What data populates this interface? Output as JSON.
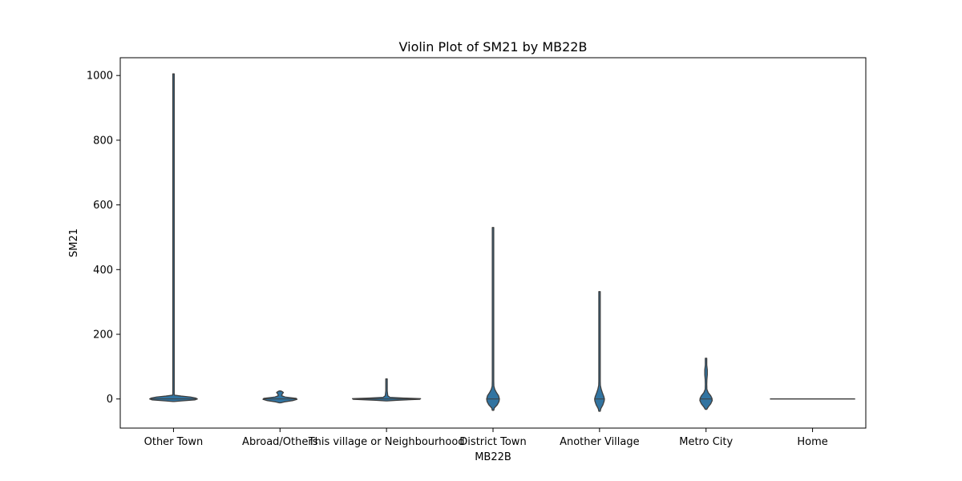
{
  "chart_data": {
    "type": "violin",
    "title": "Violin Plot of SM21 by MB22B",
    "xlabel": "MB22B",
    "ylabel": "SM21",
    "categories": [
      "Other Town",
      "Abroad/Others",
      "This village or Neighbourhood",
      "District Town",
      "Another Village",
      "Metro City",
      "Home"
    ],
    "ylim": [
      -90,
      1055
    ],
    "yticks": [
      0,
      200,
      400,
      600,
      800,
      1000
    ],
    "grid": false,
    "legend": "none",
    "color": "#3274a1",
    "edge_color": "#3f3f3f",
    "violins": [
      {
        "name": "Other Town",
        "max": 1005,
        "median": 0,
        "profile": [
          [
            -8,
            0
          ],
          [
            -6,
            0.18
          ],
          [
            -3,
            0.5
          ],
          [
            0,
            0.56
          ],
          [
            3,
            0.52
          ],
          [
            6,
            0.4
          ],
          [
            9,
            0.18
          ],
          [
            12,
            0.02
          ],
          [
            16,
            0.004
          ],
          [
            1005,
            0.002
          ]
        ]
      },
      {
        "name": "Abroad/Others",
        "max": 25,
        "median": 0,
        "profile": [
          [
            -12,
            0
          ],
          [
            -9,
            0.1
          ],
          [
            -5,
            0.3
          ],
          [
            -1,
            0.4
          ],
          [
            2,
            0.38
          ],
          [
            6,
            0.12
          ],
          [
            10,
            0.04
          ],
          [
            15,
            0.05
          ],
          [
            20,
            0.08
          ],
          [
            23,
            0.05
          ],
          [
            25,
            0
          ]
        ]
      },
      {
        "name": "This village or Neighbourhood",
        "max": 62,
        "median": 0,
        "profile": [
          [
            -6,
            0
          ],
          [
            -4,
            0.25
          ],
          [
            -1,
            0.78
          ],
          [
            1,
            0.8
          ],
          [
            3,
            0.4
          ],
          [
            5,
            0.08
          ],
          [
            10,
            0.03
          ],
          [
            25,
            0.01
          ],
          [
            62,
            0.005
          ]
        ]
      },
      {
        "name": "District Town",
        "max": 530,
        "median": 0,
        "profile": [
          [
            -35,
            0
          ],
          [
            -28,
            0.03
          ],
          [
            -18,
            0.1
          ],
          [
            -8,
            0.14
          ],
          [
            0,
            0.15
          ],
          [
            10,
            0.13
          ],
          [
            20,
            0.08
          ],
          [
            30,
            0.04
          ],
          [
            40,
            0.02
          ],
          [
            55,
            0.005
          ],
          [
            530,
            0.002
          ]
        ]
      },
      {
        "name": "Another Village",
        "max": 332,
        "median": 0,
        "profile": [
          [
            -38,
            0
          ],
          [
            -30,
            0.03
          ],
          [
            -18,
            0.08
          ],
          [
            -6,
            0.11
          ],
          [
            0,
            0.115
          ],
          [
            8,
            0.1
          ],
          [
            18,
            0.07
          ],
          [
            30,
            0.04
          ],
          [
            42,
            0.02
          ],
          [
            55,
            0.005
          ],
          [
            332,
            0.002
          ]
        ]
      },
      {
        "name": "Metro City",
        "max": 126,
        "median": 0,
        "profile": [
          [
            -32,
            0
          ],
          [
            -25,
            0.05
          ],
          [
            -15,
            0.11
          ],
          [
            -5,
            0.145
          ],
          [
            2,
            0.14
          ],
          [
            10,
            0.11
          ],
          [
            20,
            0.05
          ],
          [
            30,
            0.02
          ],
          [
            45,
            0.015
          ],
          [
            60,
            0.02
          ],
          [
            75,
            0.03
          ],
          [
            90,
            0.03
          ],
          [
            105,
            0.015
          ],
          [
            126,
            0.004
          ]
        ]
      },
      {
        "name": "Home",
        "max": 0,
        "median": 0,
        "flat": true
      }
    ]
  }
}
